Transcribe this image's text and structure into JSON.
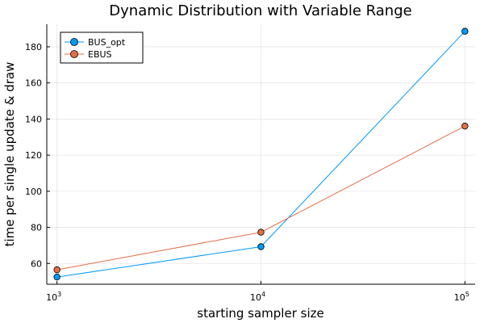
{
  "chart_data": {
    "type": "line",
    "title": "Dynamic Distribution with Variable Range",
    "xlabel": "starting sampler size",
    "ylabel": "time per single update & draw",
    "x_scale": "log10",
    "x": [
      1000,
      10000,
      100000
    ],
    "x_tick_labels": [
      {
        "base": "10",
        "exp": "3"
      },
      {
        "base": "10",
        "exp": "4"
      },
      {
        "base": "10",
        "exp": "5"
      }
    ],
    "y_ticks": [
      "60",
      "80",
      "100",
      "120",
      "140",
      "160",
      "180"
    ],
    "ylim": [
      48.5,
      192.5
    ],
    "xlim_log10": [
      2.95,
      5.05
    ],
    "grid": true,
    "legend_position": "top-left",
    "series": [
      {
        "name": "BUS_opt",
        "color": "#009af9",
        "values": [
          52.5,
          69.3,
          188.6
        ]
      },
      {
        "name": "EBUS",
        "color": "#e26f46",
        "values": [
          56.5,
          77.3,
          136.1
        ]
      }
    ]
  }
}
